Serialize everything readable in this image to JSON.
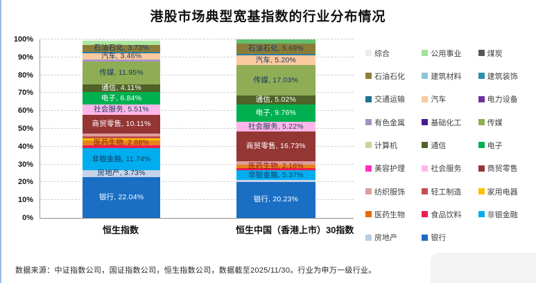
{
  "title": "港股市场典型宽基指数的行业分布情况",
  "footer": "数据来源：中证指数公司，国证指数公司，恒生指数公司，数据截至2025/11/30。行业为申万一级行业。",
  "y_axis": {
    "ticks": [
      "0%",
      "10%",
      "20%",
      "30%",
      "40%",
      "50%",
      "60%",
      "70%",
      "80%",
      "90%",
      "100%"
    ]
  },
  "legend": {
    "items": [
      {
        "name": "综合",
        "color": "#ECECEA"
      },
      {
        "name": "公用事业",
        "color": "#9FE396"
      },
      {
        "name": "煤炭",
        "color": "#575757"
      },
      {
        "name": "石油石化",
        "color": "#8A7D3A"
      },
      {
        "name": "建筑材料",
        "color": "#8FC3DC"
      },
      {
        "name": "建筑装饰",
        "color": "#2E8FAC"
      },
      {
        "name": "交通运输",
        "color": "#1F7391"
      },
      {
        "name": "汽车",
        "color": "#FAC9A0"
      },
      {
        "name": "电力设备",
        "color": "#7030A0"
      },
      {
        "name": "有色金属",
        "color": "#A492C4"
      },
      {
        "name": "基础化工",
        "color": "#4A1A8C"
      },
      {
        "name": "传媒",
        "color": "#8FAD54"
      },
      {
        "name": "计算机",
        "color": "#C6D69F"
      },
      {
        "name": "通信",
        "color": "#4F6228"
      },
      {
        "name": "电子",
        "color": "#00B050"
      },
      {
        "name": "美容护理",
        "color": "#FF2EC4"
      },
      {
        "name": "社会服务",
        "color": "#FFB7E9"
      },
      {
        "name": "商贸零售",
        "color": "#943634"
      },
      {
        "name": "纺织服饰",
        "color": "#DD9D9D"
      },
      {
        "name": "轻工制造",
        "color": "#C0504D"
      },
      {
        "name": "家用电器",
        "color": "#FFC000"
      },
      {
        "name": "医药生物",
        "color": "#E36C0A"
      },
      {
        "name": "食品饮料",
        "color": "#EE1D4E"
      },
      {
        "name": "非银金融",
        "color": "#00AEEF"
      },
      {
        "name": "房地产",
        "color": "#B8CCE4"
      },
      {
        "name": "银行",
        "color": "#1F6BC0"
      }
    ]
  },
  "chart_data": {
    "type": "bar",
    "stacked": true,
    "title": "港股市场典型宽基指数的行业分布情况",
    "unit": "percent",
    "ylim": [
      0,
      100
    ],
    "grid": "dashed-horizontal",
    "legend_position": "right",
    "categories": [
      "恒生指数",
      "恒生中国（香港上市）30指数"
    ],
    "bars": [
      {
        "category": "恒生指数",
        "segments_top_to_bottom": [
          {
            "name": "综合",
            "value": 0.8,
            "estimated": true,
            "color": "#F2F2EE"
          },
          {
            "name": "公用事业",
            "value": 2.0,
            "estimated": true,
            "color": "#AEE8A0"
          },
          {
            "name": "石油石化",
            "value": 3.73,
            "label": "石油石化, 3.73%",
            "color": "#8A7D3A",
            "text_color": "#17375E"
          },
          {
            "name": "交通运输",
            "value": 0.9,
            "estimated": true,
            "color": "#2E7E9E"
          },
          {
            "name": "汽车",
            "value": 3.46,
            "label": "汽车, 3.46%",
            "color": "#FAC9A0",
            "text_color": "#17375E"
          },
          {
            "name": "有色金属",
            "value": 1.2,
            "estimated": true,
            "color": "#A795C6"
          },
          {
            "name": "传媒",
            "value": 11.95,
            "label": "传媒, 11.95%",
            "color": "#8FAD54",
            "text_color": "#17375E"
          },
          {
            "name": "通信",
            "value": 4.11,
            "label": "通信, 4.11%",
            "color": "#4F6228",
            "text_color": "#FFFFFF"
          },
          {
            "name": "电子",
            "value": 6.84,
            "label": "电子, 6.84%",
            "color": "#00B050",
            "text_color": "#FFFFFF"
          },
          {
            "name": "社会服务",
            "value": 5.51,
            "label": "社会服务, 5.51%",
            "color": "#FFB7E9",
            "text_color": "#17375E"
          },
          {
            "name": "商贸零售",
            "value": 10.11,
            "label": "商贸零售, 10.11%",
            "color": "#943634",
            "text_color": "#FFFFFF"
          },
          {
            "name": "纺织服饰",
            "value": 1.6,
            "estimated": true,
            "color": "#DD9D9D"
          },
          {
            "name": "轻工制造",
            "value": 0.9,
            "estimated": true,
            "color": "#C0504D"
          },
          {
            "name": "家用电器",
            "value": 1.1,
            "estimated": true,
            "color": "#FFC000"
          },
          {
            "name": "医药生物",
            "value": 2.88,
            "label": "医药生物, 2.88%",
            "color": "#E8821E",
            "text_color": "#8B1A1A"
          },
          {
            "name": "食品饮料",
            "value": 1.4,
            "estimated": true,
            "color": "#EE1D4E"
          },
          {
            "name": "非银金融",
            "value": 11.74,
            "label": "非银金融, 11.74%",
            "color": "#00AEEF",
            "text_color": "#17375E"
          },
          {
            "name": "房地产",
            "value": 3.73,
            "label": "房地产, 3.73%",
            "color": "#C6D3E8",
            "text_color": "#17375E"
          },
          {
            "name": "银行",
            "value": 22.04,
            "label": "银行, 22.04%",
            "color": "#1A6FC4",
            "text_color": "#FFFFFF"
          }
        ]
      },
      {
        "category": "恒生中国（香港上市）30指数",
        "segments_top_to_bottom": [
          {
            "name": "公用事业",
            "value": 2.4,
            "estimated": true,
            "color": "#63C06F"
          },
          {
            "name": "石油石化",
            "value": 5.69,
            "label": "石油石化, 5.69%",
            "color": "#8A7D3A",
            "text_color": "#17375E"
          },
          {
            "name": "交通运输",
            "value": 0.9,
            "estimated": true,
            "color": "#2E7E9E"
          },
          {
            "name": "汽车",
            "value": 5.2,
            "label": "汽车, 5.20%",
            "color": "#FAC9A0",
            "text_color": "#17375E"
          },
          {
            "name": "传媒",
            "value": 17.03,
            "label": "传媒, 17.03%",
            "color": "#8FAD54",
            "text_color": "#17375E"
          },
          {
            "name": "通信",
            "value": 5.02,
            "label": "通信, 5.02%",
            "color": "#4F6228",
            "text_color": "#FFFFFF"
          },
          {
            "name": "电子",
            "value": 9.76,
            "label": "电子, 9.76%",
            "color": "#00B050",
            "text_color": "#FFFFFF"
          },
          {
            "name": "社会服务",
            "value": 5.22,
            "label": "社会服务, 5.22%",
            "color": "#FFB7E9",
            "text_color": "#17375E"
          },
          {
            "name": "商贸零售",
            "value": 16.73,
            "label": "商贸零售, 16.73%",
            "color": "#943634",
            "text_color": "#FFFFFF"
          },
          {
            "name": "纺织服饰",
            "value": 1.8,
            "estimated": true,
            "color": "#DD9D9D"
          },
          {
            "name": "医药生物",
            "value": 2.16,
            "label": "医药生物, 2.16%",
            "color": "#E8821E",
            "text_color": "#8B1A1A"
          },
          {
            "name": "食品饮料",
            "value": 1.1,
            "estimated": true,
            "color": "#EE1D4E"
          },
          {
            "name": "非银金融",
            "value": 5.37,
            "label": "非银金融, 5.37%",
            "color": "#00AEEF",
            "text_color": "#17375E"
          },
          {
            "name": "房地产",
            "value": 1.0,
            "estimated": true,
            "color": "#C6D3E8"
          },
          {
            "name": "银行",
            "value": 20.23,
            "label": "银行, 20.23%",
            "color": "#1A6FC4",
            "text_color": "#FFFFFF"
          }
        ]
      }
    ]
  }
}
